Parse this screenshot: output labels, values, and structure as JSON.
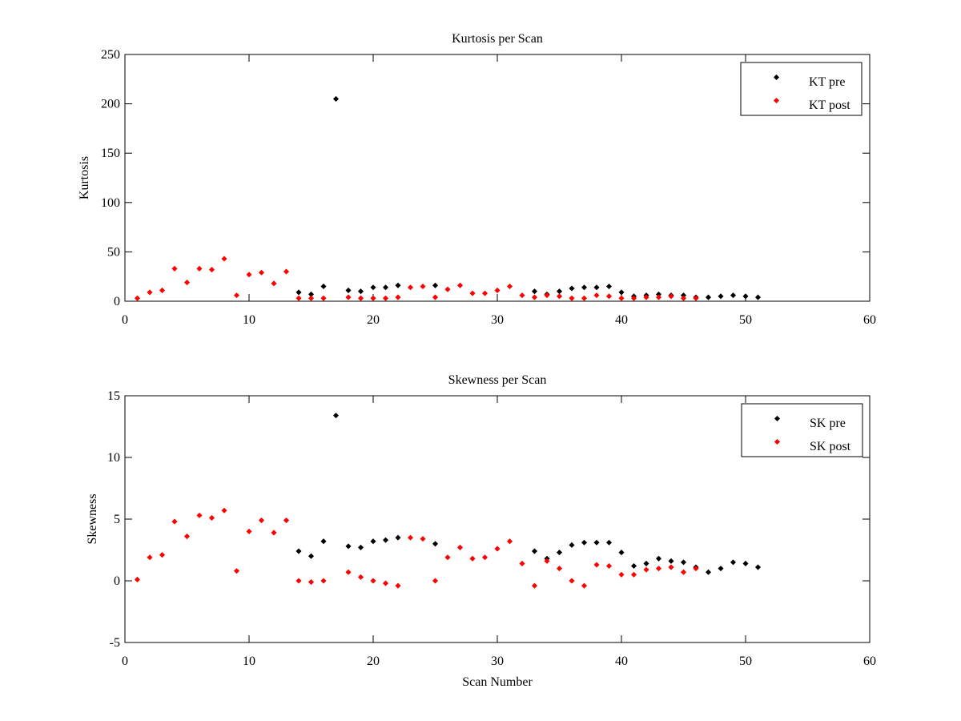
{
  "chart_data": [
    {
      "type": "scatter",
      "title": "Kurtosis per Scan",
      "xlabel": "",
      "ylabel": "Kurtosis",
      "xlim": [
        0,
        60
      ],
      "ylim": [
        0,
        250
      ],
      "xticks": [
        "0",
        "10",
        "20",
        "30",
        "40",
        "50",
        "60"
      ],
      "yticks": [
        "0",
        "50",
        "100",
        "150",
        "200",
        "250"
      ],
      "legend_position": "top-right",
      "grid": false,
      "series": [
        {
          "name": "KT pre",
          "color": "#000000",
          "points": [
            [
              14,
              9
            ],
            [
              15,
              7
            ],
            [
              16,
              15
            ],
            [
              17,
              205
            ],
            [
              18,
              11
            ],
            [
              19,
              10
            ],
            [
              20,
              14
            ],
            [
              21,
              14
            ],
            [
              22,
              16
            ],
            [
              25,
              16
            ],
            [
              33,
              10
            ],
            [
              34,
              7
            ],
            [
              35,
              10
            ],
            [
              36,
              13
            ],
            [
              37,
              14
            ],
            [
              38,
              14
            ],
            [
              39,
              15
            ],
            [
              40,
              9
            ],
            [
              41,
              5
            ],
            [
              42,
              6
            ],
            [
              43,
              7
            ],
            [
              44,
              6
            ],
            [
              45,
              6
            ],
            [
              46,
              4
            ],
            [
              47,
              4
            ],
            [
              48,
              5
            ],
            [
              49,
              6
            ],
            [
              50,
              5
            ],
            [
              51,
              4
            ]
          ]
        },
        {
          "name": "KT post",
          "color": "#ff0000",
          "points": [
            [
              1,
              3
            ],
            [
              2,
              9
            ],
            [
              3,
              11
            ],
            [
              4,
              33
            ],
            [
              5,
              19
            ],
            [
              6,
              33
            ],
            [
              7,
              32
            ],
            [
              8,
              43
            ],
            [
              9,
              6
            ],
            [
              10,
              27
            ],
            [
              11,
              29
            ],
            [
              12,
              18
            ],
            [
              13,
              30
            ],
            [
              14,
              3
            ],
            [
              15,
              3
            ],
            [
              16,
              3
            ],
            [
              18,
              4
            ],
            [
              19,
              3
            ],
            [
              20,
              3
            ],
            [
              21,
              3
            ],
            [
              22,
              4
            ],
            [
              23,
              14
            ],
            [
              24,
              15
            ],
            [
              25,
              4
            ],
            [
              26,
              12
            ],
            [
              27,
              16
            ],
            [
              28,
              8
            ],
            [
              29,
              8
            ],
            [
              30,
              11
            ],
            [
              31,
              15
            ],
            [
              32,
              6
            ],
            [
              33,
              4
            ],
            [
              34,
              6
            ],
            [
              35,
              5
            ],
            [
              36,
              3
            ],
            [
              37,
              3
            ],
            [
              38,
              6
            ],
            [
              39,
              5
            ],
            [
              40,
              3
            ],
            [
              41,
              3
            ],
            [
              42,
              4
            ],
            [
              43,
              4
            ],
            [
              44,
              5
            ],
            [
              45,
              3
            ],
            [
              46,
              3
            ]
          ]
        }
      ]
    },
    {
      "type": "scatter",
      "title": "Skewness per Scan",
      "xlabel": "Scan Number",
      "ylabel": "Skewness",
      "xlim": [
        0,
        60
      ],
      "ylim": [
        -5,
        15
      ],
      "xticks": [
        "0",
        "10",
        "20",
        "30",
        "40",
        "50",
        "60"
      ],
      "yticks": [
        "-5",
        "0",
        "5",
        "10",
        "15"
      ],
      "legend_position": "top-right",
      "grid": false,
      "series": [
        {
          "name": "SK pre",
          "color": "#000000",
          "points": [
            [
              14,
              2.4
            ],
            [
              15,
              2.0
            ],
            [
              16,
              3.2
            ],
            [
              17,
              13.4
            ],
            [
              18,
              2.8
            ],
            [
              19,
              2.7
            ],
            [
              20,
              3.2
            ],
            [
              21,
              3.3
            ],
            [
              22,
              3.5
            ],
            [
              25,
              3.0
            ],
            [
              33,
              2.4
            ],
            [
              34,
              1.8
            ],
            [
              35,
              2.3
            ],
            [
              36,
              2.9
            ],
            [
              37,
              3.1
            ],
            [
              38,
              3.1
            ],
            [
              39,
              3.1
            ],
            [
              40,
              2.3
            ],
            [
              41,
              1.2
            ],
            [
              42,
              1.4
            ],
            [
              43,
              1.8
            ],
            [
              44,
              1.6
            ],
            [
              45,
              1.5
            ],
            [
              46,
              1.1
            ],
            [
              47,
              0.7
            ],
            [
              48,
              1.0
            ],
            [
              49,
              1.5
            ],
            [
              50,
              1.4
            ],
            [
              51,
              1.1
            ]
          ]
        },
        {
          "name": "SK post",
          "color": "#ff0000",
          "points": [
            [
              1,
              0.1
            ],
            [
              2,
              1.9
            ],
            [
              3,
              2.1
            ],
            [
              4,
              4.8
            ],
            [
              5,
              3.6
            ],
            [
              6,
              5.3
            ],
            [
              7,
              5.1
            ],
            [
              8,
              5.7
            ],
            [
              9,
              0.8
            ],
            [
              10,
              4.0
            ],
            [
              11,
              4.9
            ],
            [
              12,
              3.9
            ],
            [
              13,
              4.9
            ],
            [
              14,
              0.0
            ],
            [
              15,
              -0.1
            ],
            [
              16,
              0.0
            ],
            [
              18,
              0.7
            ],
            [
              19,
              0.3
            ],
            [
              20,
              0.0
            ],
            [
              21,
              -0.2
            ],
            [
              22,
              -0.4
            ],
            [
              23,
              3.5
            ],
            [
              24,
              3.4
            ],
            [
              25,
              0.0
            ],
            [
              26,
              1.9
            ],
            [
              27,
              2.7
            ],
            [
              28,
              1.8
            ],
            [
              29,
              1.9
            ],
            [
              30,
              2.6
            ],
            [
              31,
              3.2
            ],
            [
              32,
              1.4
            ],
            [
              33,
              -0.4
            ],
            [
              34,
              1.6
            ],
            [
              35,
              1.0
            ],
            [
              36,
              0.0
            ],
            [
              37,
              -0.4
            ],
            [
              38,
              1.3
            ],
            [
              39,
              1.2
            ],
            [
              40,
              0.5
            ],
            [
              41,
              0.5
            ],
            [
              42,
              0.9
            ],
            [
              43,
              1.0
            ],
            [
              44,
              1.1
            ],
            [
              45,
              0.7
            ],
            [
              46,
              1.0
            ]
          ]
        }
      ]
    }
  ]
}
